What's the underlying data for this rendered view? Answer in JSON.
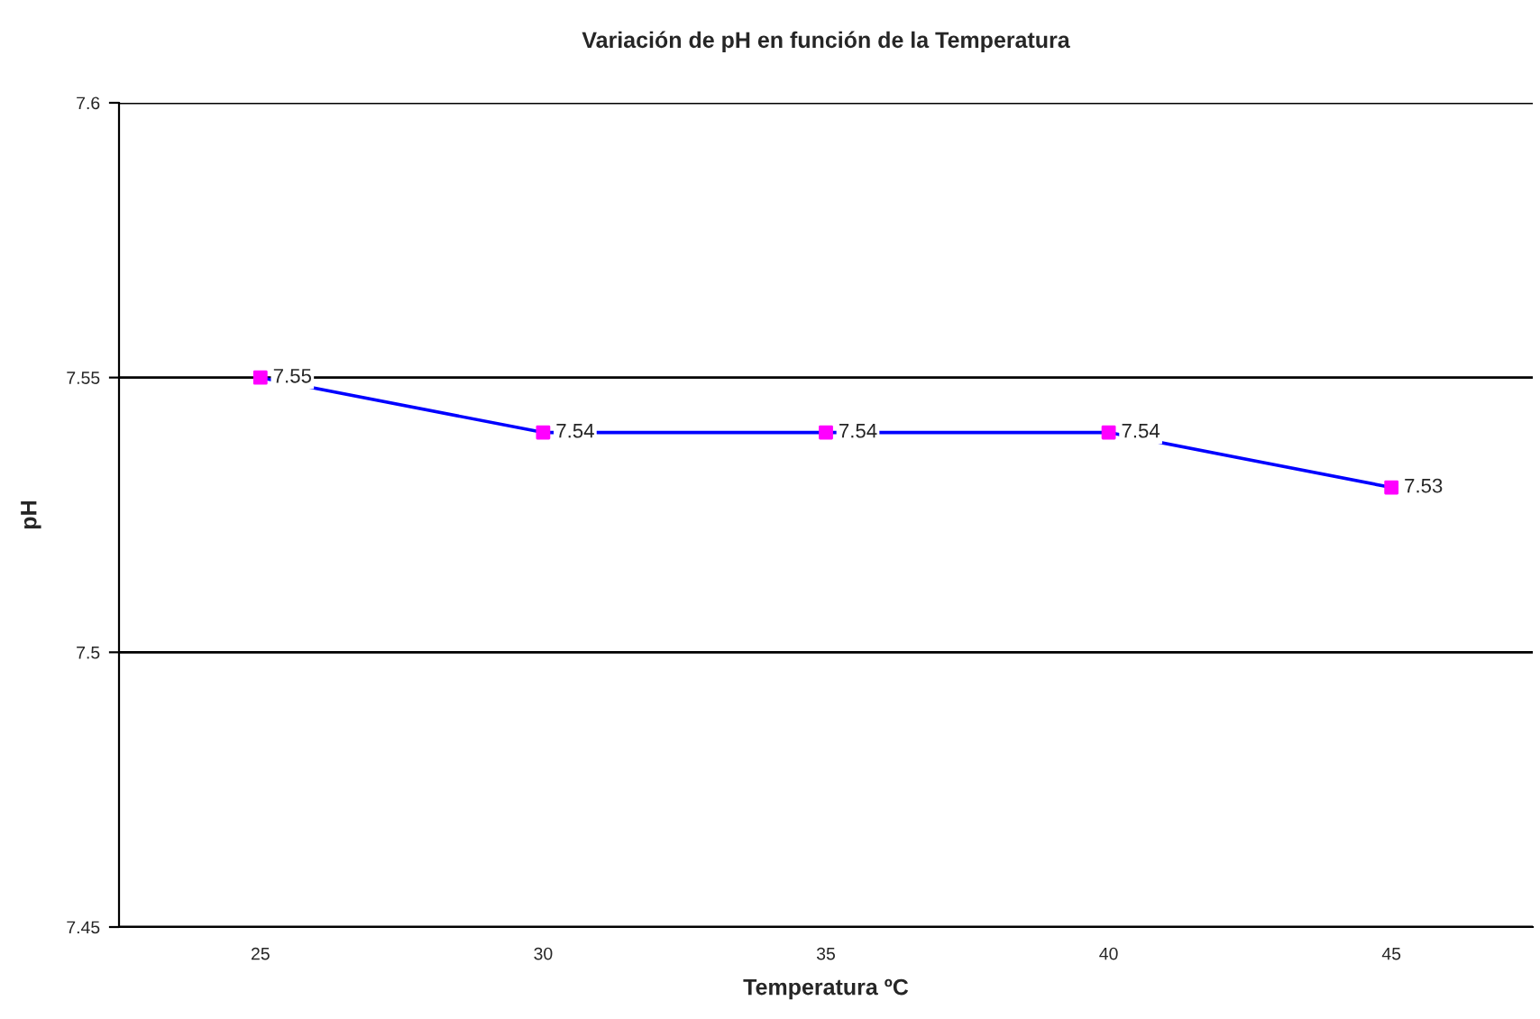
{
  "chart_data": {
    "type": "line",
    "title": "Variación de pH en función de la Temperatura",
    "xlabel": "Temperatura ºC",
    "ylabel": "pH",
    "categories": [
      "25",
      "30",
      "35",
      "40",
      "45"
    ],
    "series": [
      {
        "color": "#0000ff",
        "colors": [
          "#ff00ff",
          "#ff00ff",
          "#ff00ff",
          "#ff00ff",
          "#ff00ff"
        ],
        "values": [
          7.55,
          7.54,
          7.54,
          7.54,
          7.53
        ]
      }
    ],
    "ylim": [
      7.45,
      7.6
    ],
    "yticks": [
      7.45,
      7.5,
      7.55,
      7.6
    ],
    "grid": "y",
    "marker": "square",
    "line_style": "solid",
    "data_labels": true,
    "legend": false
  }
}
